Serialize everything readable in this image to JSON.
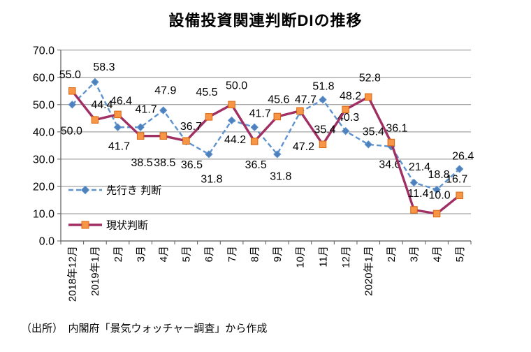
{
  "chart_data": {
    "type": "line",
    "title": "設備投資関連判断DIの推移",
    "source_note": "（出所）　内閣府「景気ウォッチャー調査」から作成",
    "categories": [
      "2018年12月",
      "2019年1月",
      "2月",
      "3月",
      "4月",
      "5月",
      "6月",
      "7月",
      "8月",
      "9月",
      "10月",
      "11月",
      "12月",
      "2020年1月",
      "2月",
      "3月",
      "4月",
      "5月"
    ],
    "yticks": [
      "0.0",
      "10.0",
      "20.0",
      "30.0",
      "40.0",
      "50.0",
      "60.0",
      "70.0"
    ],
    "ytick_values": [
      0,
      10,
      20,
      30,
      40,
      50,
      60,
      70
    ],
    "ylim": [
      0,
      70
    ],
    "grid": "horizontal",
    "legend_position": "inside-bottom-left",
    "colors": {
      "forecast_line": "#5E93CE",
      "forecast_marker": "#4E80BC",
      "current_line": "#A02F63",
      "current_marker_fill": "#F79646",
      "current_marker_edge": "#D9660F",
      "gridline": "#8C8C8C",
      "axis": "#595959",
      "label_text": "#000000"
    },
    "series": [
      {
        "id": "forecast",
        "name": "先行き 判断",
        "marker": "diamond",
        "line_style": "dashed",
        "values": [
          50.0,
          58.3,
          41.7,
          41.7,
          47.9,
          36.5,
          31.8,
          44.2,
          41.7,
          31.8,
          47.2,
          51.8,
          40.3,
          35.4,
          34.6,
          21.4,
          18.8,
          26.4
        ],
        "label_offsets": [
          [
            -1,
            37
          ],
          [
            13,
            -22
          ],
          [
            2,
            27
          ],
          [
            8,
            -26
          ],
          [
            3,
            -29
          ],
          [
            8,
            33
          ],
          [
            4,
            35
          ],
          [
            5,
            27
          ],
          [
            8,
            -20
          ],
          [
            5,
            31
          ],
          [
            5,
            49
          ],
          [
            1,
            -20
          ],
          [
            4,
            -20
          ],
          [
            7,
            -19
          ],
          [
            -2,
            25
          ],
          [
            8,
            -23
          ],
          [
            3,
            -22
          ],
          [
            5,
            -19
          ]
        ]
      },
      {
        "id": "current",
        "name": "現状判断",
        "marker": "square",
        "line_style": "solid",
        "values": [
          55.0,
          44.4,
          46.4,
          38.5,
          38.5,
          36.7,
          45.5,
          50.0,
          36.5,
          45.6,
          47.7,
          35.4,
          48.2,
          52.8,
          36.1,
          11.4,
          10.0,
          16.7
        ],
        "label_offsets": [
          [
            -3,
            -24
          ],
          [
            10,
            -22
          ],
          [
            5,
            -20
          ],
          [
            2,
            38
          ],
          [
            2,
            38
          ],
          [
            7,
            -21
          ],
          [
            -3,
            -36
          ],
          [
            7,
            -28
          ],
          [
            2,
            33
          ],
          [
            2,
            -25
          ],
          [
            8,
            -17
          ],
          [
            3,
            -22
          ],
          [
            7,
            -20
          ],
          [
            2,
            -28
          ],
          [
            8,
            -21
          ],
          [
            6,
            -24
          ],
          [
            4,
            -27
          ],
          [
            -4,
            -24
          ]
        ]
      }
    ]
  }
}
